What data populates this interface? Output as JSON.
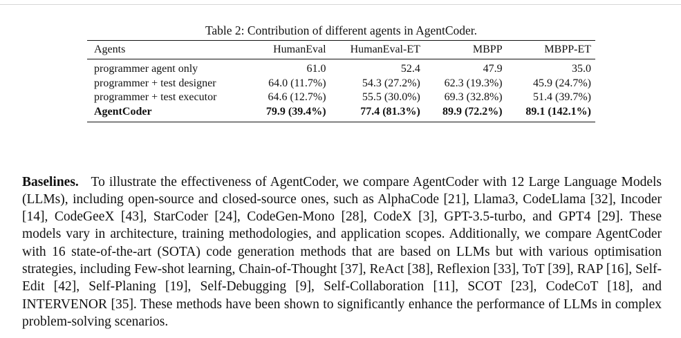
{
  "table": {
    "caption": "Table 2: Contribution of different agents in AgentCoder.",
    "headers": [
      "Agents",
      "HumanEval",
      "HumanEval-ET",
      "MBPP",
      "MBPP-ET"
    ],
    "rows": [
      [
        "programmer agent only",
        "61.0",
        "52.4",
        "47.9",
        "35.0"
      ],
      [
        "programmer + test designer",
        "64.0 (11.7%)",
        "54.3 (27.2%)",
        "62.3 (19.3%)",
        "45.9 (24.7%)"
      ],
      [
        "programmer + test executor",
        "64.6 (12.7%)",
        "55.5 (30.0%)",
        "69.3 (32.8%)",
        "51.4 (39.7%)"
      ],
      [
        "AgentCoder",
        "79.9 (39.4%)",
        "77.4 (81.3%)",
        "89.9 (72.2%)",
        "89.1 (142.1%)"
      ]
    ]
  },
  "paragraph": {
    "heading": "Baselines.",
    "body": "To illustrate the effectiveness of AgentCoder, we compare AgentCoder with 12 Large Language Models (LLMs), including open-source and closed-source ones, such as AlphaCode [21], Llama3, CodeLlama [32], Incoder [14], CodeGeeX [43], StarCoder [24], CodeGen-Mono [28], CodeX [3], GPT-3.5-turbo, and GPT4 [29]. These models vary in architecture, training methodolo­gies, and application scopes. Additionally, we compare AgentCoder with 16 state-of-the-art (SOTA) code generation methods that are based on LLMs but with various optimisation strategies, includ­ing Few-shot learning, Chain-of-Thought [37], ReAct [38], Reflexion [33], ToT [39], RAP [16], Self-Edit [42], Self-Planing [19], Self-Debugging [9], Self-Collaboration [11], SCOT [23], Code­CoT [18], and INTERVENOR [35]. These methods have been shown to significantly enhance the performance of LLMs in complex problem-solving scenarios."
  }
}
